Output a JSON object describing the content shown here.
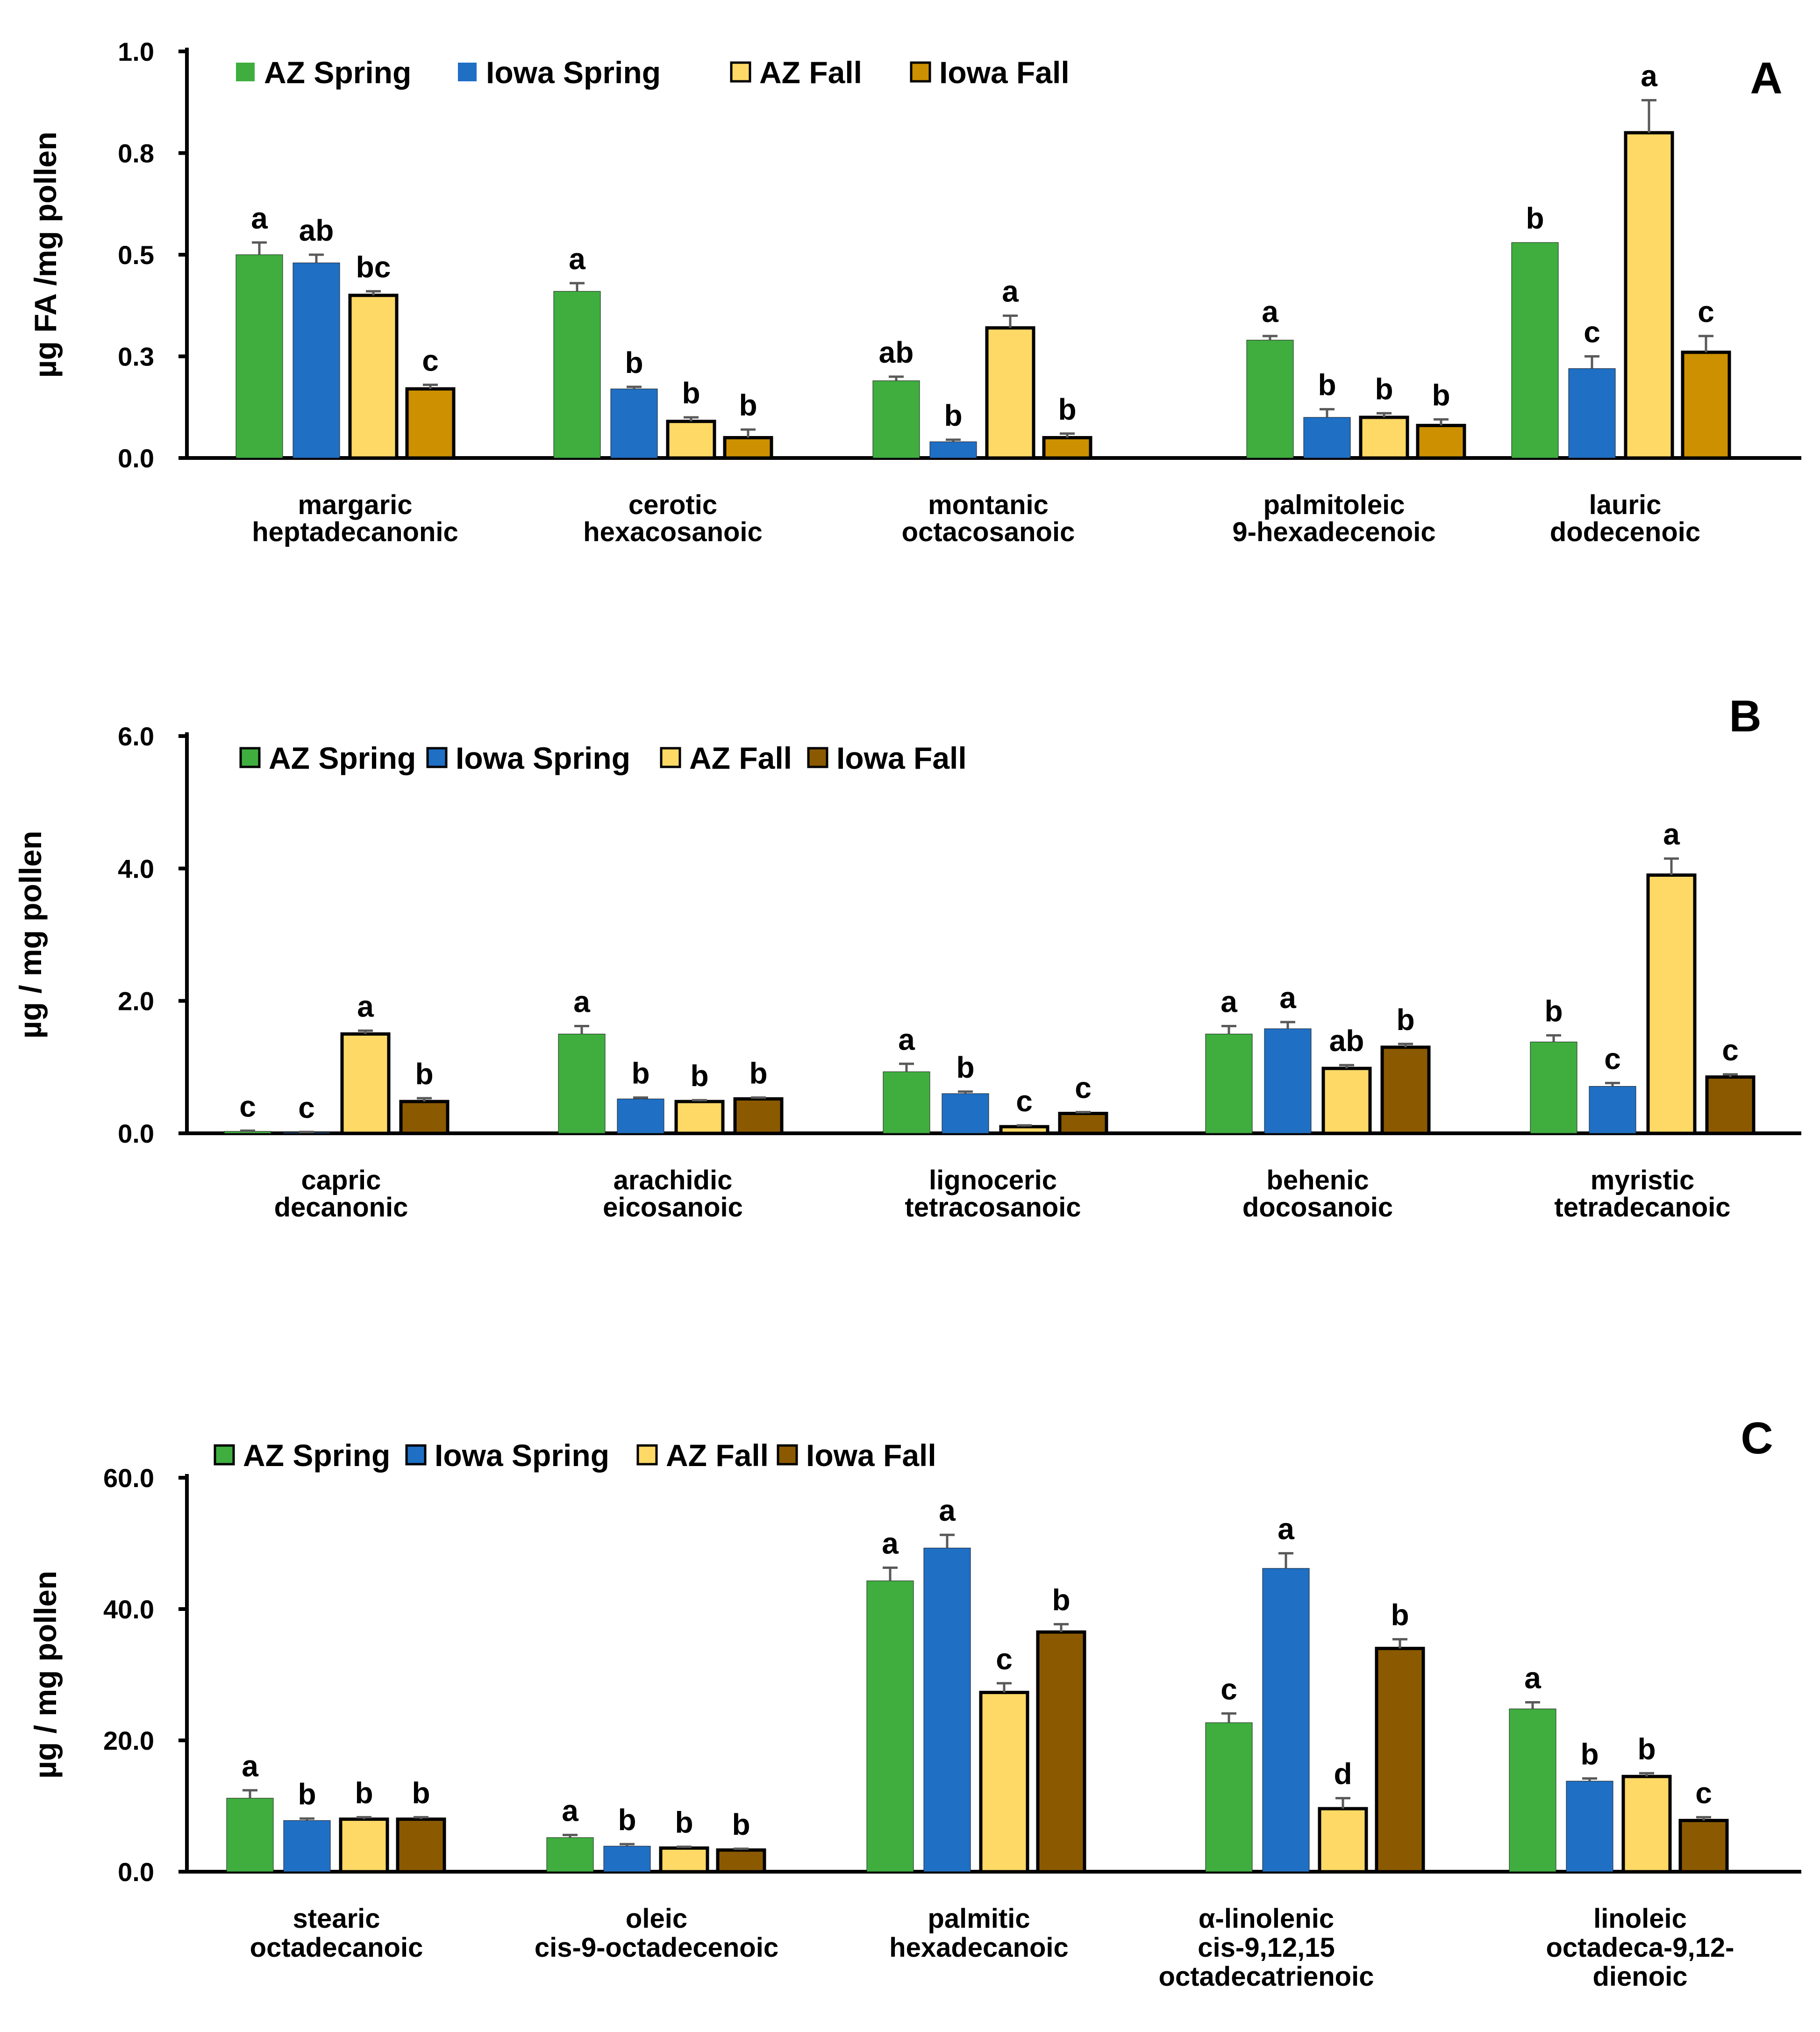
{
  "chart_data": [
    {
      "type": "bar",
      "panel": "A",
      "ylabel": "µg FA /mg pollen",
      "ylim": [
        0,
        1.0
      ],
      "yticks": [
        "0.0",
        "0.3",
        "0.5",
        "0.8",
        "1.0"
      ],
      "categories": [
        [
          "margaric",
          "heptadecanonic"
        ],
        [
          "cerotic",
          "hexacosanoic"
        ],
        [
          "montanic",
          "octacosanoic"
        ],
        [
          "palmitoleic",
          "9-hexadecenoic"
        ],
        [
          "lauric",
          "dodecenoic"
        ]
      ],
      "legend": [
        "AZ Spring",
        "Iowa Spring",
        "AZ Fall",
        "Iowa Fall"
      ],
      "series": [
        {
          "name": "AZ Spring",
          "color": "#3fae3f",
          "values": [
            0.5,
            0.41,
            0.19,
            0.29,
            0.53
          ],
          "errors": [
            0.03,
            0.02,
            0.01,
            0.01,
            0.0
          ],
          "letters": [
            "a",
            "a",
            "ab",
            "a",
            "b"
          ]
        },
        {
          "name": "Iowa Spring",
          "color": "#1f6fc4",
          "values": [
            0.48,
            0.17,
            0.04,
            0.1,
            0.22
          ],
          "errors": [
            0.02,
            0.005,
            0.005,
            0.02,
            0.03
          ],
          "letters": [
            "ab",
            "b",
            "b",
            "b",
            "c"
          ]
        },
        {
          "name": "AZ Fall",
          "color": "#ffd966",
          "values": [
            0.4,
            0.09,
            0.32,
            0.1,
            0.8
          ],
          "errors": [
            0.01,
            0.01,
            0.03,
            0.01,
            0.08
          ],
          "letters": [
            "bc",
            "b",
            "a",
            "b",
            "a"
          ]
        },
        {
          "name": "Iowa Fall",
          "color": "#cc9000",
          "values": [
            0.17,
            0.05,
            0.05,
            0.08,
            0.26
          ],
          "errors": [
            0.01,
            0.02,
            0.01,
            0.015,
            0.04
          ],
          "letters": [
            "c",
            "b",
            "b",
            "b",
            "c"
          ]
        }
      ]
    },
    {
      "type": "bar",
      "panel": "B",
      "ylabel": "µg / mg pollen",
      "ylim": [
        0,
        6.0
      ],
      "yticks": [
        "0.0",
        "2.0",
        "4.0",
        "6.0"
      ],
      "categories": [
        [
          "capric",
          "decanonic"
        ],
        [
          "arachidic",
          "eicosanoic"
        ],
        [
          "lignoceric",
          "tetracosanoic"
        ],
        [
          "behenic",
          "docosanoic"
        ],
        [
          "myristic",
          "tetradecanoic"
        ]
      ],
      "legend": [
        "AZ Spring",
        "Iowa Spring",
        "AZ Fall",
        "Iowa Fall"
      ],
      "series": [
        {
          "name": "AZ Spring",
          "color": "#3fae3f",
          "values": [
            0.03,
            1.5,
            0.93,
            1.5,
            1.38
          ],
          "errors": [
            0.01,
            0.12,
            0.12,
            0.12,
            0.1
          ],
          "letters": [
            "c",
            "a",
            "a",
            "a",
            "b"
          ]
        },
        {
          "name": "Iowa Spring",
          "color": "#1f6fc4",
          "values": [
            0.01,
            0.52,
            0.6,
            1.58,
            0.71
          ],
          "errors": [
            0.01,
            0.02,
            0.03,
            0.1,
            0.05
          ],
          "letters": [
            "c",
            "b",
            "b",
            "a",
            "c"
          ]
        },
        {
          "name": "AZ Fall",
          "color": "#ffd966",
          "values": [
            1.5,
            0.48,
            0.1,
            0.98,
            3.9
          ],
          "errors": [
            0.05,
            0.02,
            0.02,
            0.05,
            0.25
          ],
          "letters": [
            "a",
            "b",
            "c",
            "ab",
            "a"
          ]
        },
        {
          "name": "Iowa Fall",
          "color": "#8b5a00",
          "values": [
            0.48,
            0.52,
            0.3,
            1.3,
            0.85
          ],
          "errors": [
            0.05,
            0.02,
            0.02,
            0.05,
            0.04
          ],
          "letters": [
            "b",
            "b",
            "c",
            "b",
            "c"
          ]
        }
      ]
    },
    {
      "type": "bar",
      "panel": "C",
      "ylabel": "µg / mg pollen",
      "ylim": [
        0,
        60.0
      ],
      "yticks": [
        "0.0",
        "20.0",
        "40.0",
        "60.0"
      ],
      "categories": [
        [
          "stearic",
          "octadecanoic"
        ],
        [
          "oleic",
          "cis-9-octadecenoic"
        ],
        [
          "palmitic",
          "hexadecanoic"
        ],
        [
          "α-linolenic",
          "cis-9,12,15",
          "octadecatrienoic"
        ],
        [
          "linoleic",
          "octadeca-9,12-",
          "dienoic"
        ]
      ],
      "legend": [
        "AZ Spring",
        "Iowa Spring",
        "AZ Fall",
        "Iowa Fall"
      ],
      "series": [
        {
          "name": "AZ Spring",
          "color": "#3fae3f",
          "values": [
            11.2,
            5.2,
            44.3,
            22.7,
            24.8
          ],
          "errors": [
            1.2,
            0.4,
            2.0,
            1.4,
            1.0
          ],
          "letters": [
            "a",
            "a",
            "a",
            "c",
            "a"
          ]
        },
        {
          "name": "Iowa Spring",
          "color": "#1f6fc4",
          "values": [
            7.8,
            3.9,
            49.3,
            46.2,
            13.8
          ],
          "errors": [
            0.3,
            0.3,
            2.0,
            2.3,
            0.4
          ],
          "letters": [
            "b",
            "b",
            "a",
            "a",
            "b"
          ]
        },
        {
          "name": "AZ Fall",
          "color": "#ffd966",
          "values": [
            8.0,
            3.6,
            27.3,
            9.6,
            14.5
          ],
          "errors": [
            0.3,
            0.2,
            1.4,
            1.6,
            0.5
          ],
          "letters": [
            "b",
            "b",
            "c",
            "d",
            "b"
          ]
        },
        {
          "name": "Iowa Fall",
          "color": "#8b5a00",
          "values": [
            8.0,
            3.3,
            36.5,
            34.0,
            7.8
          ],
          "errors": [
            0.3,
            0.2,
            1.2,
            1.4,
            0.5
          ],
          "letters": [
            "b",
            "b",
            "b",
            "b",
            "c"
          ]
        }
      ]
    }
  ]
}
